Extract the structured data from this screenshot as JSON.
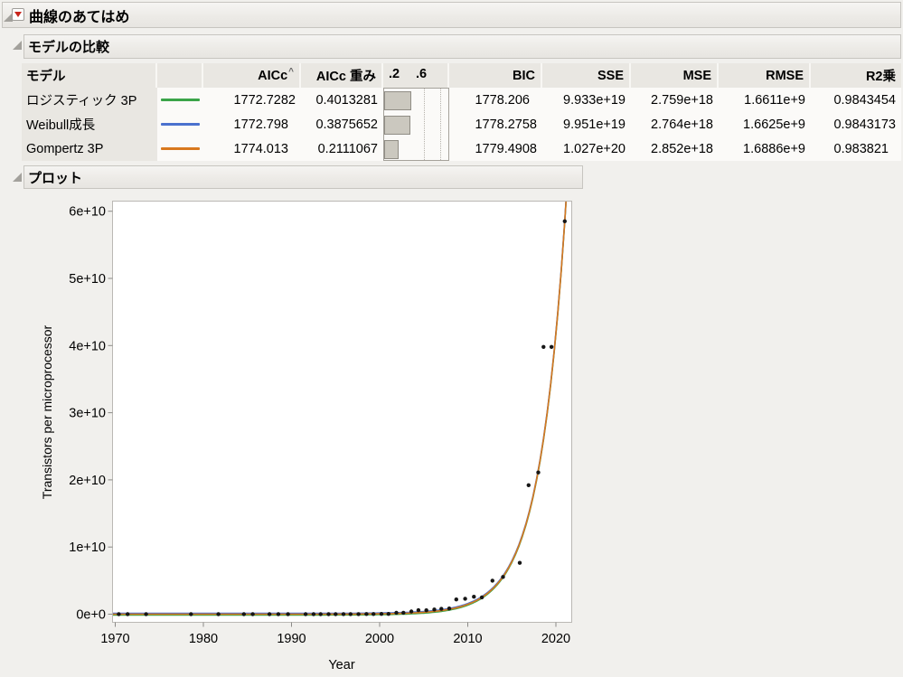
{
  "window_title": "曲線のあてはめ",
  "sections": {
    "model_comparison": "モデルの比較",
    "plot": "プロット"
  },
  "table": {
    "headers": {
      "model": "モデル",
      "aicc": "AICc",
      "aicc_sort_caret": "^",
      "aicc_weight": "AICc 重み",
      "bar_tick_02": ".2",
      "bar_tick_06": ".6",
      "bic": "BIC",
      "sse": "SSE",
      "mse": "MSE",
      "rmse": "RMSE",
      "r2": "R2乗"
    },
    "rows": [
      {
        "model": "ロジスティック 3P",
        "line_color": "#3ba449",
        "aicc": "1772.7282",
        "aicc_weight": "0.4013281",
        "weight_value": 0.4013281,
        "bic": "1778.206",
        "sse": "9.933e+19",
        "mse": "2.759e+18",
        "rmse": "1.6611e+9",
        "r2": "0.9843454"
      },
      {
        "model": "Weibull成長",
        "line_color": "#4a71ce",
        "aicc": "1772.798",
        "aicc_weight": "0.3875652",
        "weight_value": 0.3875652,
        "bic": "1778.2758",
        "sse": "9.951e+19",
        "mse": "2.764e+18",
        "rmse": "1.6625e+9",
        "r2": "0.9843173"
      },
      {
        "model": "Gompertz 3P",
        "line_color": "#d8781e",
        "aicc": "1774.013",
        "aicc_weight": "0.2111067",
        "weight_value": 0.2111067,
        "bic": "1779.4908",
        "sse": "1.027e+20",
        "mse": "2.852e+18",
        "rmse": "1.6886e+9",
        "r2": "0.983821"
      }
    ]
  },
  "chart_data": {
    "type": "scatter",
    "title": "",
    "xlabel": "Year",
    "ylabel": "Transistors per microprocessor",
    "xlim": [
      1969.7,
      2022.3
    ],
    "ylim": [
      -1300000000,
      61500000000
    ],
    "x_ticks": [
      1970,
      1980,
      1990,
      2000,
      2010,
      2020
    ],
    "y_ticks": [
      0,
      10000000000,
      20000000000,
      30000000000,
      40000000000,
      50000000000,
      60000000000
    ],
    "y_tick_labels": [
      "0e+0",
      "1e+10",
      "2e+10",
      "3e+10",
      "4e+10",
      "5e+10",
      "6e+10"
    ],
    "grid": false,
    "legend_position": "none",
    "points": [
      [
        1970.4,
        2300
      ],
      [
        1971.4,
        3500
      ],
      [
        1973.5,
        6000
      ],
      [
        1978.6,
        29000
      ],
      [
        1981.7,
        134000
      ],
      [
        1984.6,
        275000
      ],
      [
        1985.6,
        275000
      ],
      [
        1987.5,
        553000
      ],
      [
        1988.5,
        1200000
      ],
      [
        1989.6,
        1180000
      ],
      [
        1991.6,
        1350000
      ],
      [
        1992.5,
        3100000
      ],
      [
        1993.3,
        3100000
      ],
      [
        1994.2,
        5500000
      ],
      [
        1995.0,
        5500000
      ],
      [
        1995.9,
        7500000
      ],
      [
        1996.7,
        8800000
      ],
      [
        1997.6,
        9500000
      ],
      [
        1998.5,
        21000000
      ],
      [
        1999.3,
        28000000
      ],
      [
        2000.2,
        42000000
      ],
      [
        2001.0,
        45000000
      ],
      [
        2001.9,
        220000000
      ],
      [
        2002.7,
        220000000
      ],
      [
        2003.6,
        410000000
      ],
      [
        2004.4,
        592000000
      ],
      [
        2005.3,
        580000000
      ],
      [
        2006.2,
        700000000
      ],
      [
        2007.0,
        790000000
      ],
      [
        2007.9,
        850000000
      ],
      [
        2008.7,
        2200000000
      ],
      [
        2009.7,
        2300000000
      ],
      [
        2010.7,
        2600000000
      ],
      [
        2011.6,
        2500000000
      ],
      [
        2012.8,
        5000000000
      ],
      [
        2014.0,
        5540000000
      ],
      [
        2015.9,
        7650000000
      ],
      [
        2016.9,
        19200000000
      ],
      [
        2018.0,
        21100000000
      ],
      [
        2018.6,
        39800000000
      ],
      [
        2019.5,
        39800000000
      ],
      [
        2021.0,
        58500000000
      ]
    ],
    "fit_curves": [
      {
        "name": "ロジスティック 3P",
        "color": "#3ba449",
        "dy": 0.9
      },
      {
        "name": "Weibull成長",
        "color": "#4a71ce",
        "dy": -0.9
      },
      {
        "name": "Gompertz 3P",
        "color": "#d8781e",
        "dy": 0
      }
    ],
    "fit_exp": {
      "ref_year": 2021,
      "ref_value": 58500000000,
      "k": 0.335
    }
  }
}
